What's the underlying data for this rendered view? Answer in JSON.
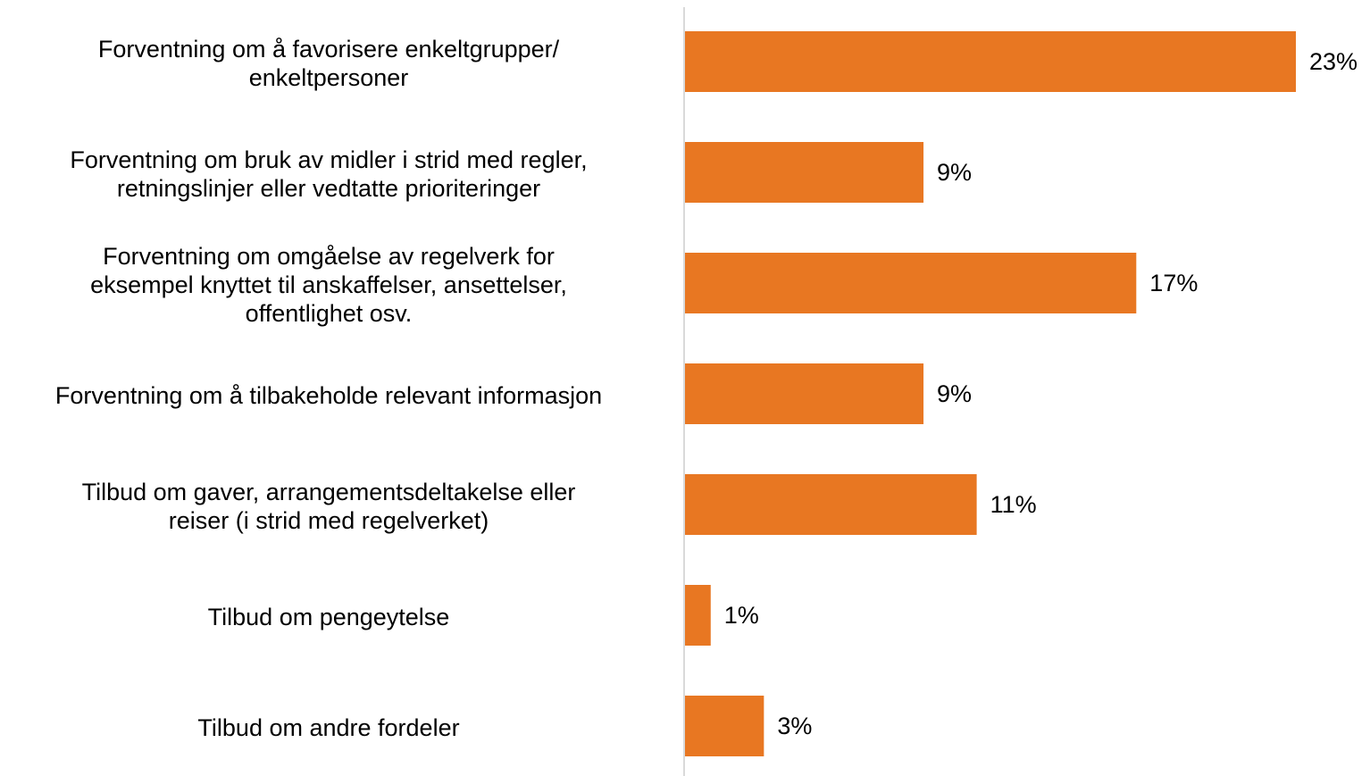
{
  "chart_data": {
    "type": "barh",
    "categories": [
      "Forventning om å favorisere enkeltgrupper/\nenkeltpersoner",
      "Forventning om bruk av midler i strid med regler,\nretningslinjer eller vedtatte prioriteringer",
      "Forventning om omgåelse av regelverk for\neksempel knyttet til anskaffelser, ansettelser,\noffentlighet osv.",
      "Forventning om å tilbakeholde relevant informasjon",
      "Tilbud om gaver, arrangementsdeltakelse eller\nreiser (i strid med regelverket)",
      "Tilbud om pengeytelse",
      "Tilbud om andre fordeler"
    ],
    "values": [
      23,
      9,
      17,
      9,
      11,
      1,
      3
    ],
    "value_labels": [
      "23%",
      "9%",
      "17%",
      "9%",
      "11%",
      "1%",
      "3%"
    ],
    "color": "#e87722"
  }
}
